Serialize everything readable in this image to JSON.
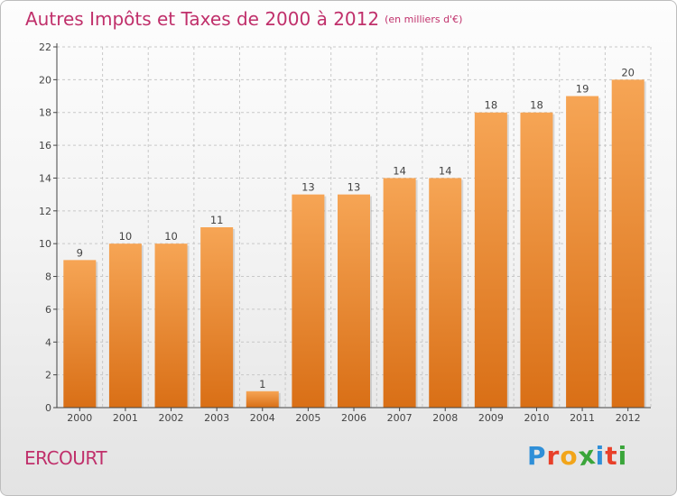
{
  "title": "Autres Impôts et Taxes de 2000 à 2012",
  "title_unit": "(en milliers d'€)",
  "commune": "ERCOURT",
  "logo": {
    "text": "Proxiti",
    "letters": [
      {
        "ch": "P",
        "color": "#2f8fd8"
      },
      {
        "ch": "r",
        "color": "#e8402a"
      },
      {
        "ch": "o",
        "color": "#f2a51a"
      },
      {
        "ch": "x",
        "color": "#3aa53a"
      },
      {
        "ch": "i",
        "color": "#2f8fd8"
      },
      {
        "ch": "t",
        "color": "#e8402a"
      },
      {
        "ch": "i",
        "color": "#3aa53a"
      }
    ]
  },
  "colors": {
    "title": "#c0306b",
    "bar_top": "#f6a555",
    "bar_bottom": "#d96f16",
    "axis": "#444444",
    "grid": "#c8c8c8"
  },
  "chart_data": {
    "type": "bar",
    "title": "Autres Impôts et Taxes de 2000 à 2012",
    "subtitle": "(en milliers d'€)",
    "xlabel": "",
    "ylabel": "",
    "categories": [
      "2000",
      "2001",
      "2002",
      "2003",
      "2004",
      "2005",
      "2006",
      "2007",
      "2008",
      "2009",
      "2010",
      "2011",
      "2012"
    ],
    "values": [
      9,
      10,
      10,
      11,
      1,
      13,
      13,
      14,
      14,
      18,
      18,
      19,
      20
    ],
    "value_labels": [
      "9",
      "10",
      "10",
      "11",
      "1",
      "13",
      "13",
      "14",
      "14",
      "18",
      "18",
      "19",
      "20"
    ],
    "ylim": [
      0,
      22
    ],
    "yticks": [
      0,
      2,
      4,
      6,
      8,
      10,
      12,
      14,
      16,
      18,
      20,
      22
    ],
    "grid": true,
    "legend": "none"
  }
}
